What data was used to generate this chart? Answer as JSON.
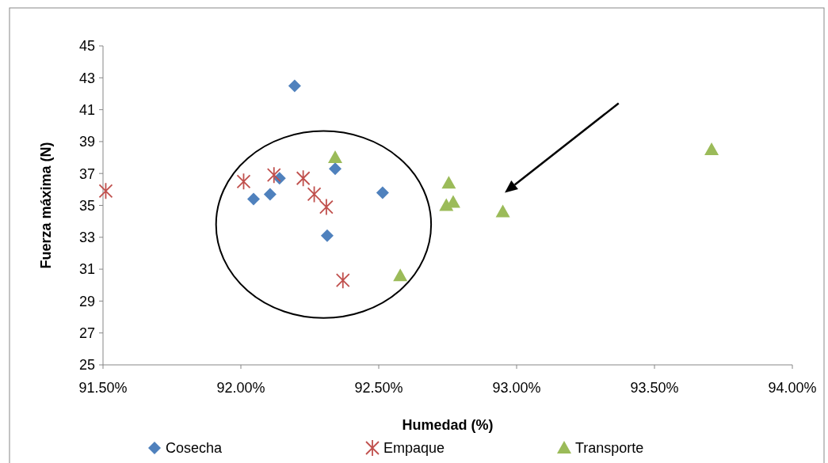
{
  "chart_data": {
    "type": "scatter",
    "xlabel": "Humedad (%)",
    "ylabel": "Fuerza máxima (N)",
    "xlim": [
      91.5,
      94
    ],
    "xticks": [
      {
        "value": 91.5,
        "label": "91.50%"
      },
      {
        "value": 92,
        "label": "92.00%"
      },
      {
        "value": 92.5,
        "label": "92.50%"
      },
      {
        "value": 93,
        "label": "93.00%"
      },
      {
        "value": 93.5,
        "label": "93.50%"
      },
      {
        "value": 94,
        "label": "94.00%"
      }
    ],
    "ylim": [
      25,
      45
    ],
    "yticks": [
      25,
      27,
      29,
      31,
      33,
      35,
      37,
      39,
      41,
      43,
      45
    ],
    "grid": false,
    "legend": "bottom",
    "series": [
      {
        "name": "Cosecha",
        "color": "#4f81bd",
        "marker": "diamond",
        "x": [
          92.195,
          92.046,
          92.106,
          92.14,
          92.342,
          92.514,
          92.313
        ],
        "values": [
          42.5,
          35.4,
          35.7,
          36.7,
          37.3,
          35.8,
          33.1
        ]
      },
      {
        "name": "Empaque",
        "color": "#c0504d",
        "marker": "cross",
        "x": [
          91.51,
          92.01,
          92.12,
          92.226,
          92.266,
          92.31,
          92.37
        ],
        "values": [
          35.9,
          36.5,
          36.9,
          36.7,
          35.7,
          34.9,
          30.3
        ]
      },
      {
        "name": "Transporte",
        "color": "#9bbb59",
        "marker": "triangle",
        "x": [
          92.342,
          92.754,
          92.745,
          92.77,
          92.578,
          92.95,
          93.707
        ],
        "values": [
          38.0,
          36.4,
          35.0,
          35.2,
          30.6,
          34.6,
          38.5
        ]
      }
    ]
  }
}
